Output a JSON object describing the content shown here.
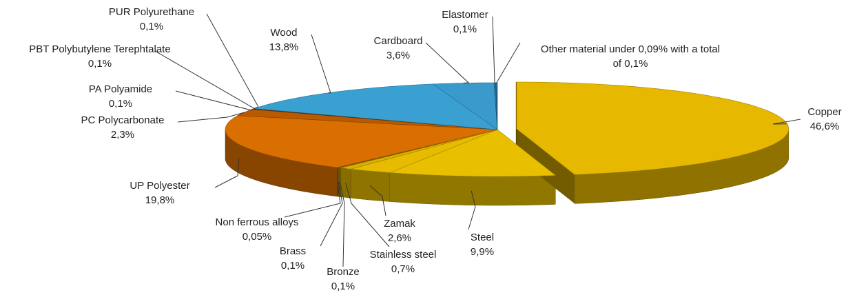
{
  "chart_data": {
    "type": "pie",
    "categories": [
      "Copper",
      "Steel",
      "Zamak",
      "Stainless steel",
      "Bronze",
      "Brass",
      "Non ferrous alloys",
      "UP Polyester",
      "PC Polycarbonate",
      "PA Polyamide",
      "PBT Polybutylene Terephtalate",
      "PUR Polyurethane",
      "Wood",
      "Cardboard",
      "Elastomer",
      "Other material under 0,09% with a total"
    ],
    "values": [
      46.6,
      9.9,
      2.6,
      0.7,
      0.1,
      0.1,
      0.05,
      19.8,
      2.3,
      0.1,
      0.1,
      0.1,
      13.8,
      3.6,
      0.1,
      0.1
    ],
    "value_labels": [
      "46,6%",
      "9,9%",
      "2,6%",
      "0,7%",
      "0,1%",
      "0,1%",
      "0,05%",
      "19,8%",
      "2,3%",
      "0,1%",
      "0,1%",
      "0,1%",
      "13,8%",
      "3,6%",
      "0,1%",
      "of 0,1%"
    ],
    "colors": [
      "#e6b800",
      "#e8c000",
      "#e6bb00",
      "#d9b000",
      "#c99a00",
      "#b58a00",
      "#8a6a00",
      "#d96f00",
      "#b85a00",
      "#a04d00",
      "#8a4200",
      "#6e3500",
      "#3aa0d2",
      "#3a9acc",
      "#2a7aa8",
      "#1f6a96"
    ]
  }
}
